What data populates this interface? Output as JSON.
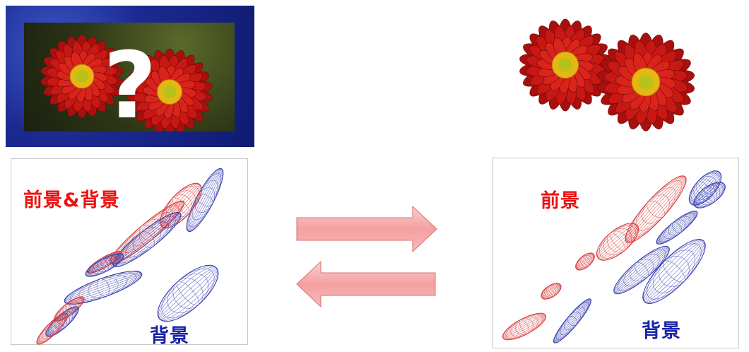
{
  "left_panel": {
    "foreground_background_label": "前景&背景",
    "background_label": "背景"
  },
  "right_panel": {
    "foreground_label": "前景",
    "background_label": "背景"
  },
  "question_mark": "?",
  "colors": {
    "foreground": "#ee1111",
    "background": "#1a24a8",
    "arrow_fill": "#f6a9a9",
    "frame": "#1a2a8c"
  },
  "icons": [
    "flower-photo",
    "question-mark-icon",
    "segmented-flowers",
    "right-arrow-icon",
    "left-arrow-icon"
  ]
}
